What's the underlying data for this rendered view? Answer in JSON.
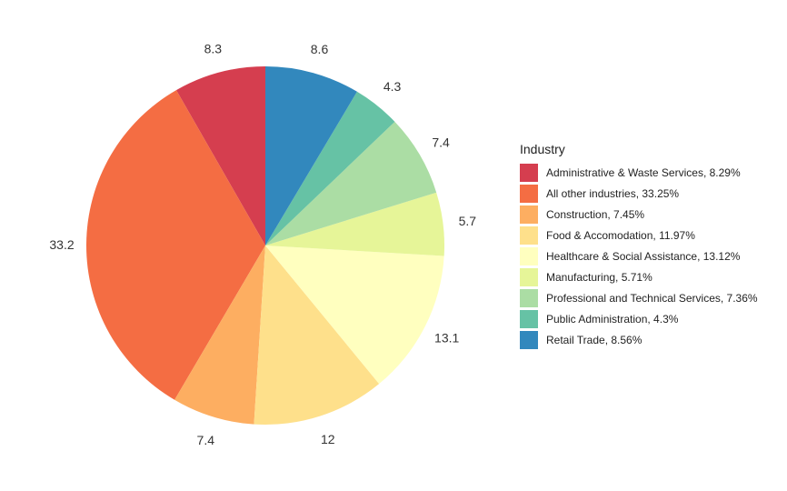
{
  "chart_data": {
    "type": "pie",
    "legend_title": "Industry",
    "legend_position": "right",
    "start": "top",
    "direction": "clockwise-from-last",
    "slices": [
      {
        "category": "Administrative & Waste Services",
        "value": 8.29,
        "legend": "Administrative & Waste Services, 8.29%",
        "label": "8.3",
        "color": "#D53E4F"
      },
      {
        "category": "All other industries",
        "value": 33.25,
        "legend": "All other industries, 33.25%",
        "label": "33.2",
        "color": "#F46D43"
      },
      {
        "category": "Construction",
        "value": 7.45,
        "legend": "Construction, 7.45%",
        "label": "7.4",
        "color": "#FDAE61"
      },
      {
        "category": "Food & Accomodation",
        "value": 11.97,
        "legend": "Food & Accomodation, 11.97%",
        "label": "12",
        "color": "#FEE08B"
      },
      {
        "category": "Healthcare & Social Assistance",
        "value": 13.12,
        "legend": "Healthcare & Social Assistance, 13.12%",
        "label": "13.1",
        "color": "#FFFFBF"
      },
      {
        "category": "Manufacturing",
        "value": 5.71,
        "legend": "Manufacturing, 5.71%",
        "label": "5.7",
        "color": "#E6F598"
      },
      {
        "category": "Professional and Technical Services",
        "value": 7.36,
        "legend": "Professional and Technical Services, 7.36%",
        "label": "7.4",
        "color": "#ABDDA4"
      },
      {
        "category": "Public Administration",
        "value": 4.3,
        "legend": "Public Administration, 4.3%",
        "label": "4.3",
        "color": "#66C2A5"
      },
      {
        "category": "Retail Trade",
        "value": 8.56,
        "legend": "Retail Trade, 8.56%",
        "label": "8.6",
        "color": "#3288BD"
      }
    ]
  }
}
